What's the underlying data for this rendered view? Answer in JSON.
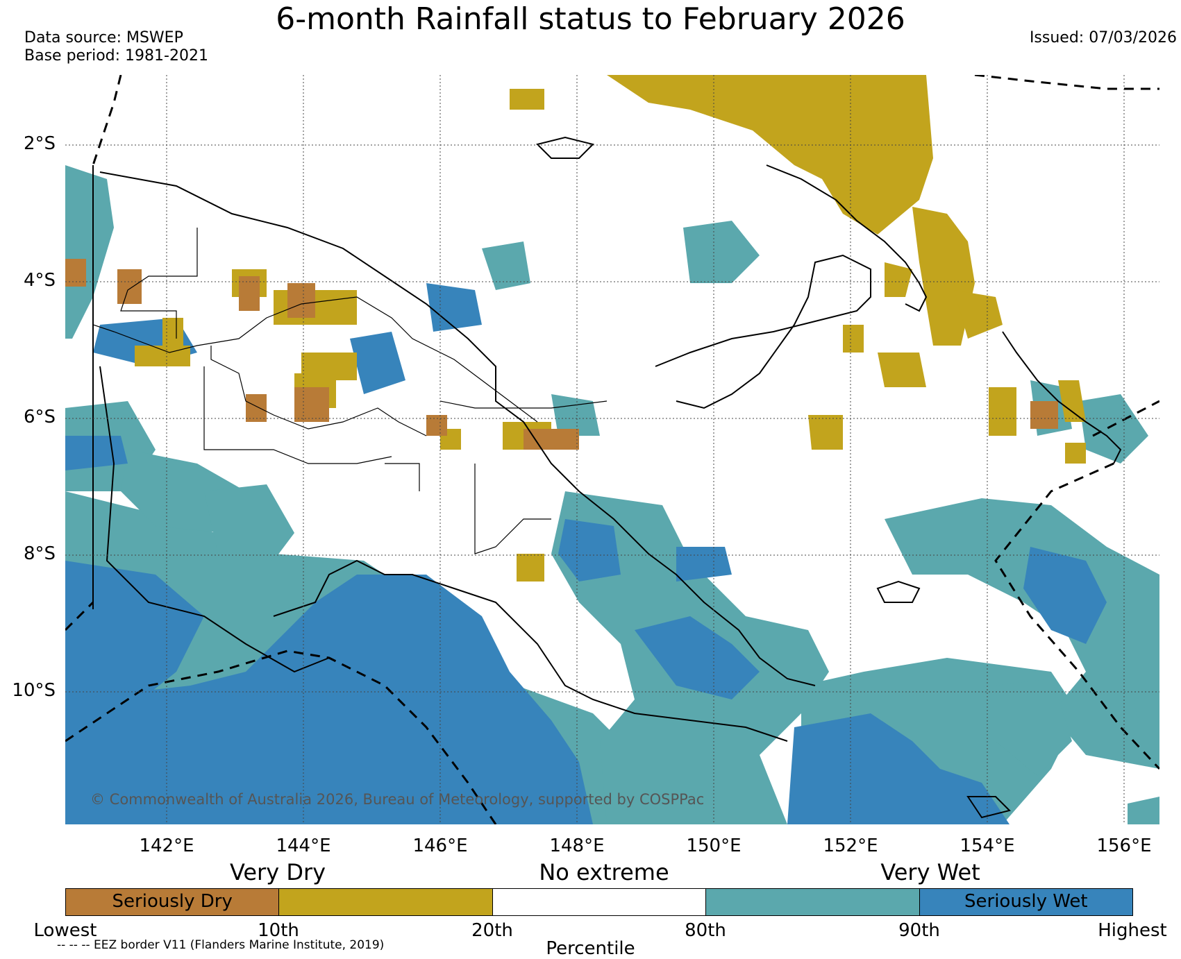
{
  "title": "6-month Rainfall status to February 2026",
  "meta": {
    "data_source": "Data source: MSWEP",
    "base_period": "Base period: 1981-2021",
    "issued": "Issued: 07/03/2026"
  },
  "map": {
    "lat_labels": [
      "2°S",
      "4°S",
      "6°S",
      "8°S",
      "10°S"
    ],
    "lon_labels": [
      "142°E",
      "144°E",
      "146°E",
      "148°E",
      "150°E",
      "152°E",
      "154°E",
      "156°E"
    ],
    "copyright": "© Commonwealth of Australia 2026, Bureau of Meteorology, supported by COSPPac"
  },
  "legend": {
    "categories": [
      "Very Dry",
      "No extreme",
      "Very Wet"
    ],
    "segments": [
      {
        "label": "Seriously Dry",
        "color": "#b87b37"
      },
      {
        "label": "",
        "color": "#c2a41d"
      },
      {
        "label": "",
        "color": "#ffffff"
      },
      {
        "label": "",
        "color": "#5ba8ad"
      },
      {
        "label": "Seriously Wet",
        "color": "#3784bb"
      }
    ],
    "percentile_ticks": [
      "Lowest",
      "10th",
      "20th",
      "80th",
      "90th",
      "Highest"
    ],
    "xlabel": "Percentile",
    "eez_note": "-- -- -- EEZ border V11 (Flanders Marine Institute, 2019)"
  },
  "colors": {
    "seriously_dry": "#b87b37",
    "very_dry": "#c2a41d",
    "no_extreme": "#ffffff",
    "very_wet": "#5ba8ad",
    "seriously_wet": "#3784bb"
  }
}
